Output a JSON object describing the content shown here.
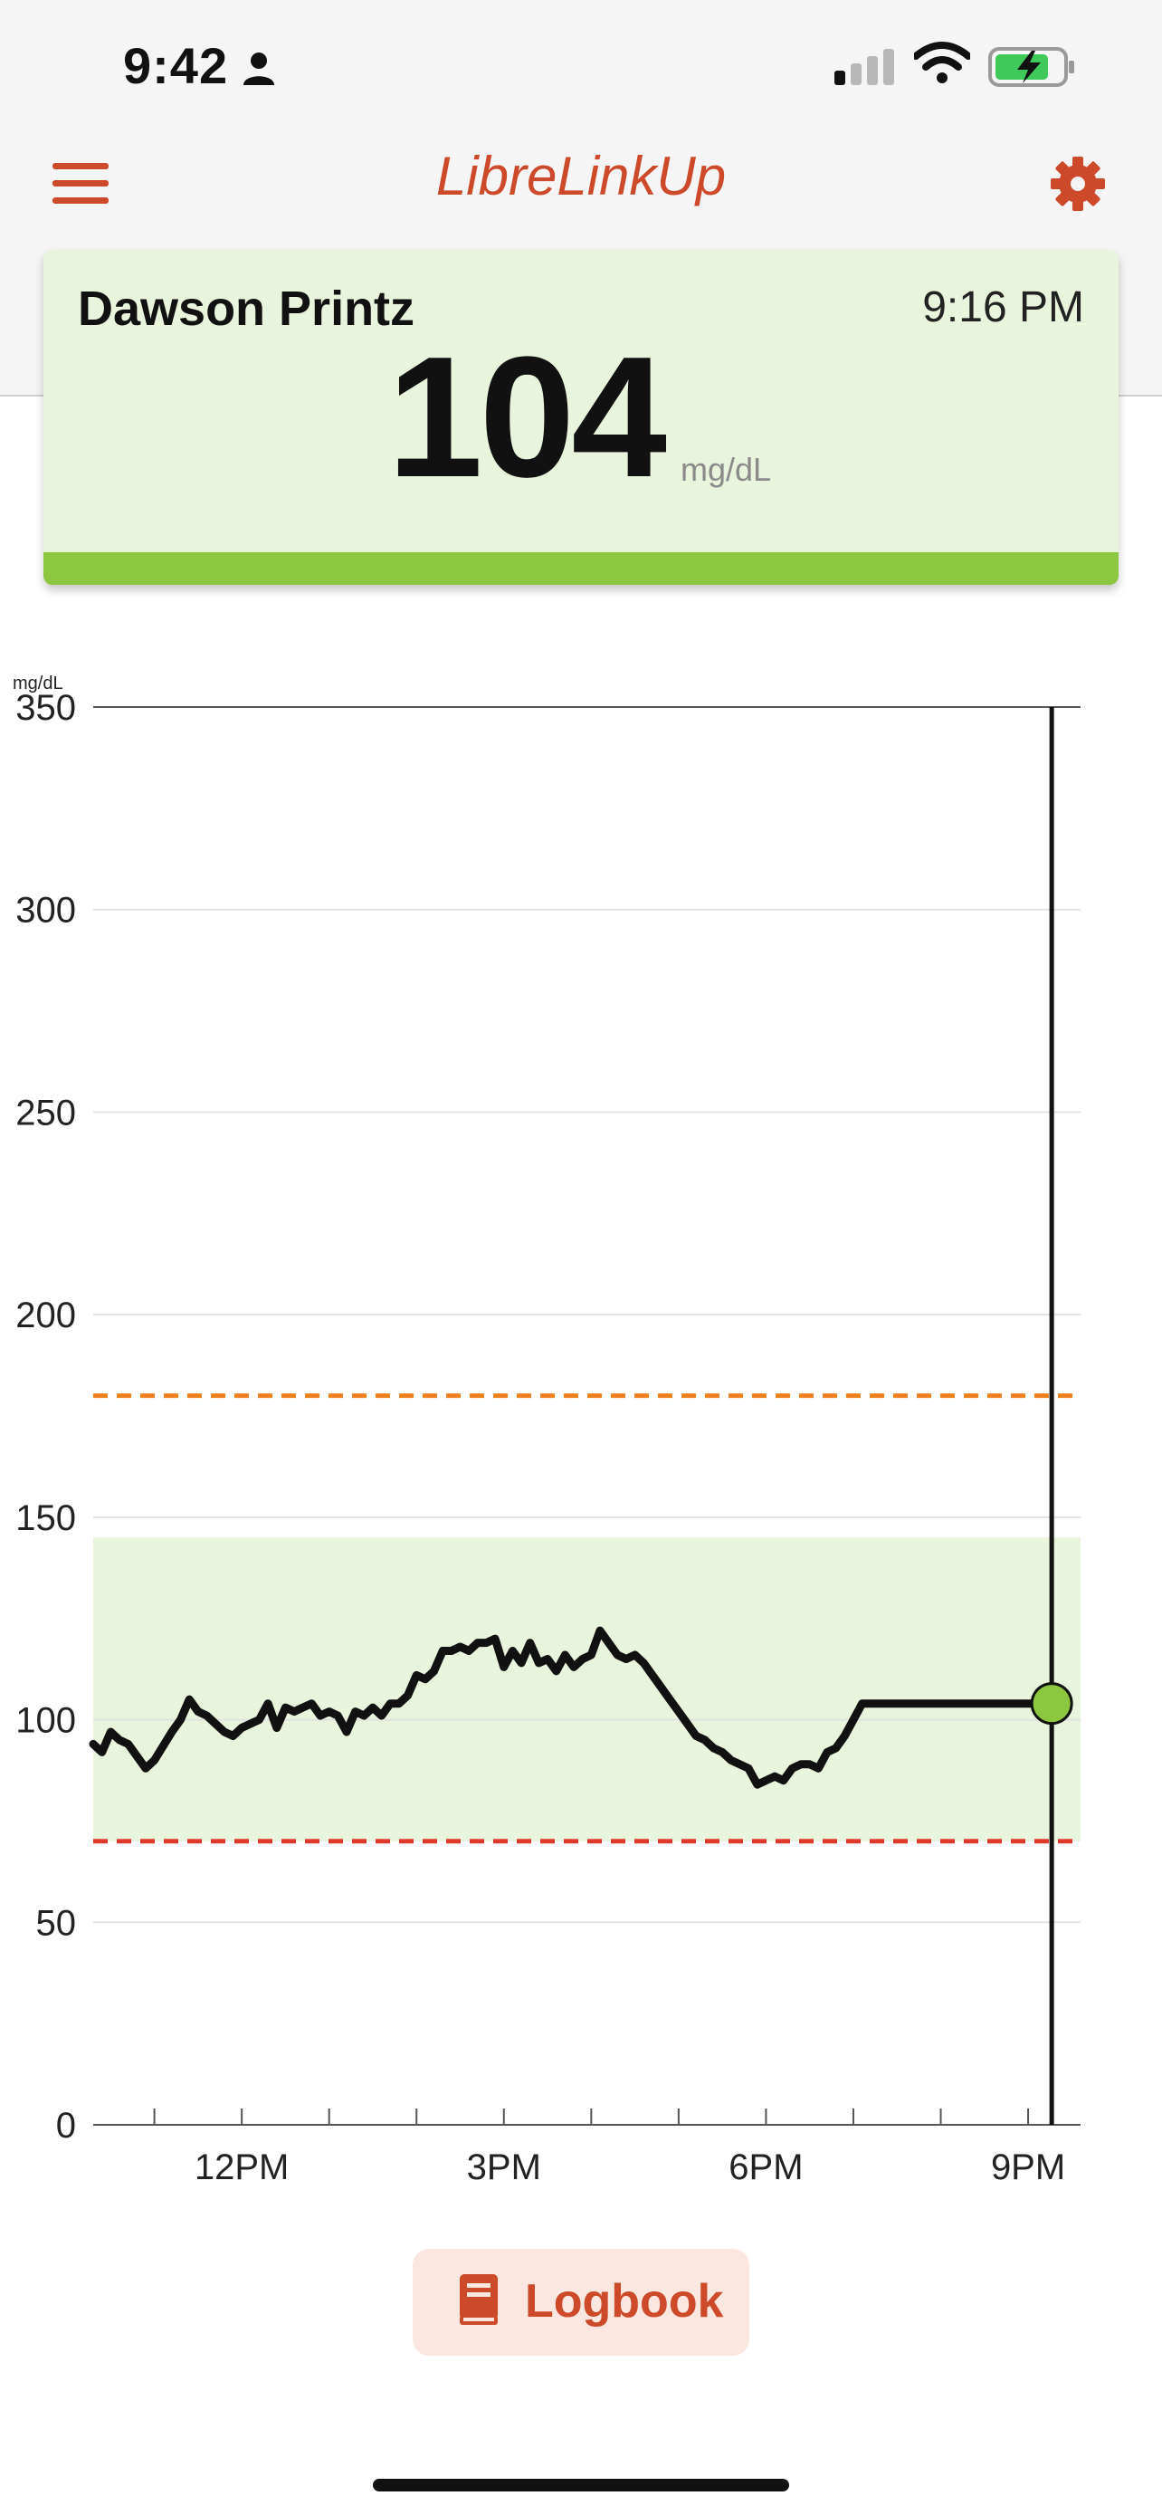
{
  "status_bar": {
    "time": "9:42",
    "icons": [
      "person-icon",
      "cellular-signal-icon",
      "wifi-icon",
      "battery-charging-icon"
    ]
  },
  "header": {
    "title": "LibreLinkUp",
    "menu_icon": "hamburger-menu-icon",
    "settings_icon": "gear-icon",
    "accent_color": "#cc4a2a"
  },
  "card": {
    "name": "Dawson Printz",
    "time": "9:16 PM",
    "value": "104",
    "unit": "mg/dL",
    "status_color": "#8dc73f"
  },
  "chart_data": {
    "type": "line",
    "ylabel": "mg/dL",
    "ylim": [
      0,
      350
    ],
    "yticks": [
      "0",
      "50",
      "100",
      "150",
      "200",
      "250",
      "300",
      "350"
    ],
    "xticks": [
      "12PM",
      "3PM",
      "6PM",
      "9PM"
    ],
    "x_range_hours": [
      10.3,
      21.6
    ],
    "target_range": [
      70,
      145
    ],
    "high_threshold": 180,
    "low_threshold": 70,
    "current_time_hours": 21.27,
    "current_value": 104,
    "series": [
      {
        "x": [
          10.3,
          10.4,
          10.5,
          10.6,
          10.7,
          10.9,
          11.0,
          11.2,
          11.3,
          11.4,
          11.5,
          11.6,
          11.8,
          11.9,
          12.0,
          12.1,
          12.2,
          12.3,
          12.4,
          12.5,
          12.6,
          12.7,
          12.8,
          12.9,
          13.0,
          13.1,
          13.2,
          13.3,
          13.4,
          13.5,
          13.6,
          13.7,
          13.8,
          13.9,
          14.0,
          14.1,
          14.2,
          14.3,
          14.4,
          14.5,
          14.6,
          14.7,
          14.8,
          14.9,
          15.0,
          15.1,
          15.2,
          15.3,
          15.4,
          15.5,
          15.6,
          15.7,
          15.8,
          15.9,
          16.0,
          16.1,
          16.2,
          16.3,
          16.4,
          16.5,
          16.6,
          16.7,
          16.8,
          16.9,
          17.0,
          17.1,
          17.2,
          17.3,
          17.4,
          17.5,
          17.6,
          17.7,
          17.8,
          17.9,
          18.0,
          18.1,
          18.2,
          18.3,
          18.4,
          18.5,
          18.6,
          18.7,
          18.8,
          18.9,
          19.0,
          19.1,
          19.2,
          19.3,
          19.4,
          19.5,
          19.6,
          19.7,
          19.8,
          19.9,
          20.0,
          20.1,
          20.2,
          20.3,
          20.4,
          20.5,
          20.6,
          20.7,
          20.8,
          20.9,
          21.0,
          21.1,
          21.2,
          21.27
        ],
        "y": [
          94,
          92,
          97,
          95,
          94,
          88,
          90,
          97,
          100,
          105,
          102,
          101,
          97,
          96,
          98,
          99,
          100,
          104,
          98,
          103,
          102,
          103,
          104,
          101,
          102,
          101,
          97,
          102,
          101,
          103,
          101,
          104,
          104,
          106,
          111,
          110,
          112,
          117,
          117,
          118,
          117,
          119,
          119,
          120,
          113,
          117,
          114,
          119,
          114,
          115,
          112,
          116,
          113,
          115,
          116,
          122,
          119,
          116,
          115,
          116,
          114,
          111,
          108,
          105,
          102,
          99,
          96,
          95,
          93,
          92,
          90,
          89,
          88,
          84,
          85,
          86,
          85,
          88,
          89,
          89,
          88,
          92,
          93,
          96,
          100,
          104,
          104,
          104,
          104,
          104,
          104,
          104,
          104,
          104,
          104,
          104,
          104,
          104,
          104,
          104,
          104,
          104,
          104,
          104,
          104,
          104,
          104,
          104
        ]
      }
    ],
    "colors": {
      "line": "#111111",
      "target_band": "#e8f4dc",
      "high_line": "#f07f1c",
      "low_line": "#e03a2f",
      "current_point": "#8dc73f"
    }
  },
  "logbook": {
    "label": "Logbook",
    "icon": "book-icon"
  }
}
